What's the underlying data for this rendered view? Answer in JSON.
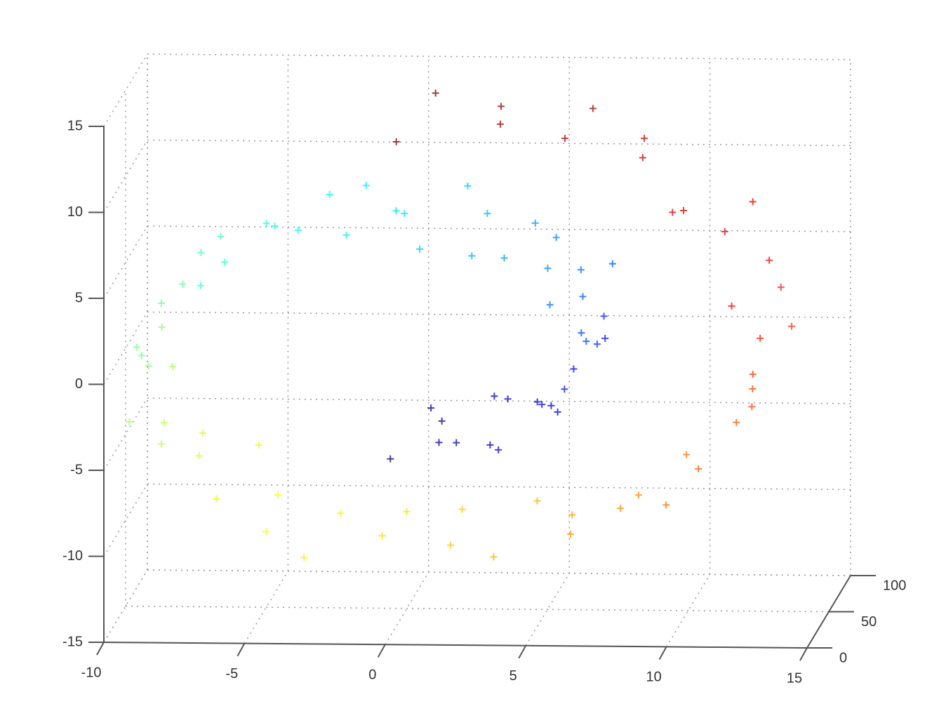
{
  "chart_data": {
    "type": "scatter3d",
    "xlim": [
      -10,
      15
    ],
    "xticks": [
      -10,
      -5,
      0,
      5,
      10,
      15
    ],
    "ylim": [
      0,
      100
    ],
    "yticks": [
      0,
      50,
      100
    ],
    "zlim": [
      -15,
      15
    ],
    "zticks": [
      -15,
      -10,
      -5,
      0,
      5,
      10,
      15
    ],
    "grid": true,
    "marker": "+",
    "x": [
      0,
      0.98,
      1.99,
      3.0,
      3.95,
      4.8,
      5.51,
      6.02,
      6.31,
      6.34,
      6.1,
      5.58,
      4.8,
      3.77,
      2.52,
      1.09,
      -0.46,
      -2.08,
      -3.68,
      -5.21,
      -6.59,
      -7.77,
      -8.67,
      -9.25,
      -9.47,
      -9.31,
      -8.75,
      -7.81,
      -6.51,
      -4.89,
      -2.99,
      -0.91,
      1.3,
      3.53,
      5.69,
      7.69,
      9.46,
      10.89,
      11.92,
      12.5,
      12.57,
      12.15,
      11.21,
      9.77,
      7.9,
      5.65,
      3.1,
      0.35,
      0.5,
      1.48,
      2.49,
      3.5,
      4.45,
      5.3,
      6.01,
      6.52,
      6.81,
      6.84,
      6.6,
      6.08,
      5.3,
      4.27,
      3.02,
      1.59,
      0.04,
      -1.58,
      -3.18,
      -4.71,
      -6.09,
      -7.27,
      -8.17,
      -8.75,
      -8.97,
      -8.81,
      -8.25,
      -7.31,
      -6.01,
      -4.39,
      -2.49,
      -0.41,
      1.8,
      4.03,
      6.19,
      8.19,
      9.96,
      11.39,
      12.42,
      13.0,
      13.07,
      12.65,
      11.71,
      10.27,
      8.4,
      6.15,
      3.6,
      0.85
    ],
    "y": [
      12,
      67,
      35,
      88,
      5,
      50,
      77,
      23,
      95,
      41,
      60,
      18,
      83,
      30,
      72,
      9,
      55,
      91,
      38,
      64,
      2,
      79,
      46,
      27,
      99,
      14,
      58,
      86,
      33,
      70,
      7,
      52,
      93,
      21,
      62,
      44,
      81,
      16,
      74,
      37,
      97,
      11,
      56,
      29,
      85,
      48,
      66,
      3,
      73,
      28,
      90,
      15,
      62,
      39,
      8,
      84,
      47,
      20,
      96,
      57,
      31,
      69,
      4,
      87,
      42,
      13,
      78,
      51,
      25,
      92,
      63,
      6,
      36,
      81,
      19,
      45,
      98,
      10,
      59,
      76,
      34,
      89,
      26,
      53,
      2,
      71,
      40,
      94,
      17,
      65,
      88,
      22,
      49,
      80,
      32,
      61
    ],
    "z": [
      -4.71,
      -4.81,
      -4.71,
      -4.38,
      -3.84,
      -3.08,
      -2.14,
      -1.04,
      0.18,
      1.48,
      2.79,
      4.07,
      5.24,
      6.26,
      7.07,
      7.63,
      7.9,
      7.84,
      7.45,
      6.73,
      5.7,
      4.37,
      2.8,
      1.04,
      -0.83,
      -2.76,
      -4.65,
      -6.42,
      -8.0,
      -9.31,
      -10.28,
      -10.88,
      -11.03,
      -10.74,
      -10.0,
      -8.83,
      -7.24,
      -5.32,
      -3.09,
      -0.68,
      1.86,
      4.38,
      6.8,
      9.04,
      10.96,
      12.49,
      13.56,
      14.11,
      -4.31,
      -4.41,
      -4.31,
      -3.98,
      -3.44,
      -2.68,
      -1.74,
      -0.64,
      0.58,
      1.88,
      3.19,
      4.47,
      5.64,
      6.66,
      7.47,
      8.03,
      8.3,
      8.24,
      7.85,
      7.13,
      6.1,
      4.77,
      3.2,
      1.44,
      -0.43,
      -2.36,
      -4.25,
      -6.02,
      -7.6,
      -8.91,
      -9.88,
      -10.48,
      -10.63,
      -10.34,
      -9.6,
      -8.43,
      -6.84,
      -4.92,
      -2.69,
      -0.28,
      2.26,
      4.78,
      7.2,
      9.44,
      11.36,
      12.89,
      13.96,
      14.51
    ],
    "colors": [
      "#000080",
      "#000095",
      "#0000ab",
      "#0000c1",
      "#0000d6",
      "#0000ec",
      "#0003ff",
      "#0018ff",
      "#002eff",
      "#0044ff",
      "#0059ff",
      "#006fff",
      "#0085ff",
      "#009aff",
      "#00b0ff",
      "#00c6ff",
      "#00dcff",
      "#00f1ff",
      "#08fff7",
      "#1effe1",
      "#33ffcc",
      "#49ffb6",
      "#5fffa0",
      "#74ff8a",
      "#8aff74",
      "#a0ff5f",
      "#b6ff49",
      "#ccff33",
      "#e1ff1e",
      "#f7ff08",
      "#fff100",
      "#ffdc00",
      "#ffc600",
      "#ffb000",
      "#ff9a00",
      "#ff8500",
      "#ff6f00",
      "#ff5900",
      "#ff4400",
      "#ff2e00",
      "#ff1800",
      "#ff0300",
      "#ec0000",
      "#d60000",
      "#c10000",
      "#ab0000",
      "#950000",
      "#800000",
      "#000080",
      "#000095",
      "#0000ab",
      "#0000c1",
      "#0000d6",
      "#0000ec",
      "#0003ff",
      "#0018ff",
      "#002eff",
      "#0044ff",
      "#0059ff",
      "#006fff",
      "#0085ff",
      "#009aff",
      "#00b0ff",
      "#00c6ff",
      "#00dcff",
      "#00f1ff",
      "#08fff7",
      "#1effe1",
      "#33ffcc",
      "#49ffb6",
      "#5fffa0",
      "#74ff8a",
      "#8aff74",
      "#a0ff5f",
      "#b6ff49",
      "#ccff33",
      "#e1ff1e",
      "#f7ff08",
      "#fff100",
      "#ffdc00",
      "#ffc600",
      "#ffb000",
      "#ff9a00",
      "#ff8500",
      "#ff6f00",
      "#ff5900",
      "#ff4400",
      "#ff2e00",
      "#ff1800",
      "#ff0300",
      "#ec0000",
      "#d60000",
      "#c10000",
      "#ab0000",
      "#950000",
      "#800000"
    ]
  }
}
